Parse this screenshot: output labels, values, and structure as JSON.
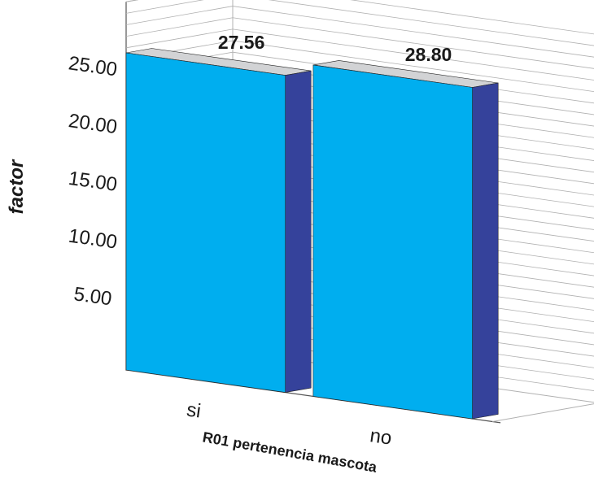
{
  "chart_data": {
    "type": "bar",
    "categories": [
      "si",
      "no"
    ],
    "values": [
      27.56,
      28.8
    ],
    "value_labels": [
      "27.56",
      "28.80"
    ],
    "xlabel": "R01 pertenencia mascota",
    "ylabel": "factor",
    "yticks": [
      5,
      10,
      15,
      20,
      25
    ],
    "ytick_labels": [
      "5.00",
      "10.00",
      "15.00",
      "20.00",
      "25.00"
    ],
    "ylim": [
      0,
      30
    ],
    "grid": true,
    "colors": {
      "bar_front": "#00AEEF",
      "bar_side": "#35429B",
      "bar_top": "#D2D3D5",
      "grid": "#b0b0b0"
    }
  }
}
